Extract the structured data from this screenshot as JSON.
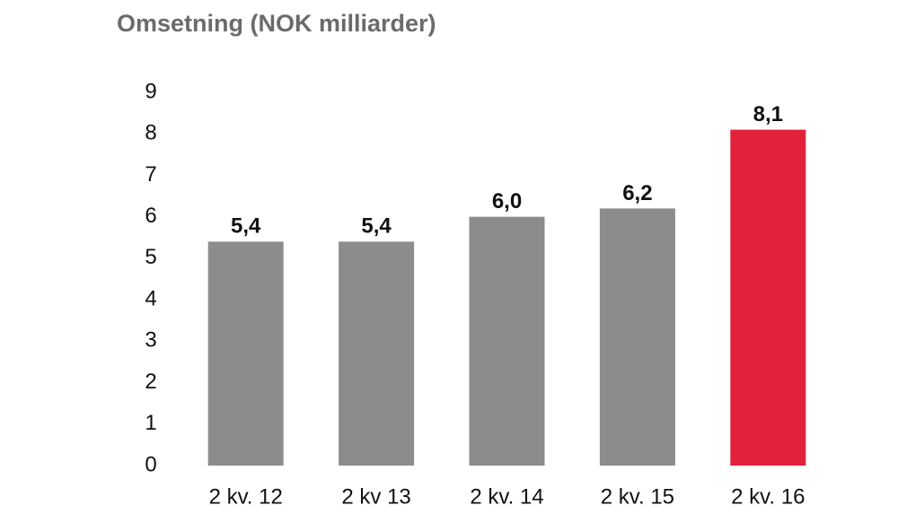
{
  "chart_data": {
    "type": "bar",
    "title": "Omsetning (NOK milliarder)",
    "categories": [
      "2 kv. 12",
      "2 kv 13",
      "2 kv. 14",
      "2 kv. 15",
      "2 kv. 16"
    ],
    "values": [
      5.4,
      5.4,
      6.0,
      6.2,
      8.1
    ],
    "value_labels": [
      "5,4",
      "5,4",
      "6,0",
      "6,2",
      "8,1"
    ],
    "colors": [
      "#8c8c8c",
      "#8c8c8c",
      "#8c8c8c",
      "#8c8c8c",
      "#e2213a"
    ],
    "ylim": [
      0,
      9
    ],
    "yticks": [
      0,
      1,
      2,
      3,
      4,
      5,
      6,
      7,
      8,
      9
    ],
    "grid": false
  }
}
